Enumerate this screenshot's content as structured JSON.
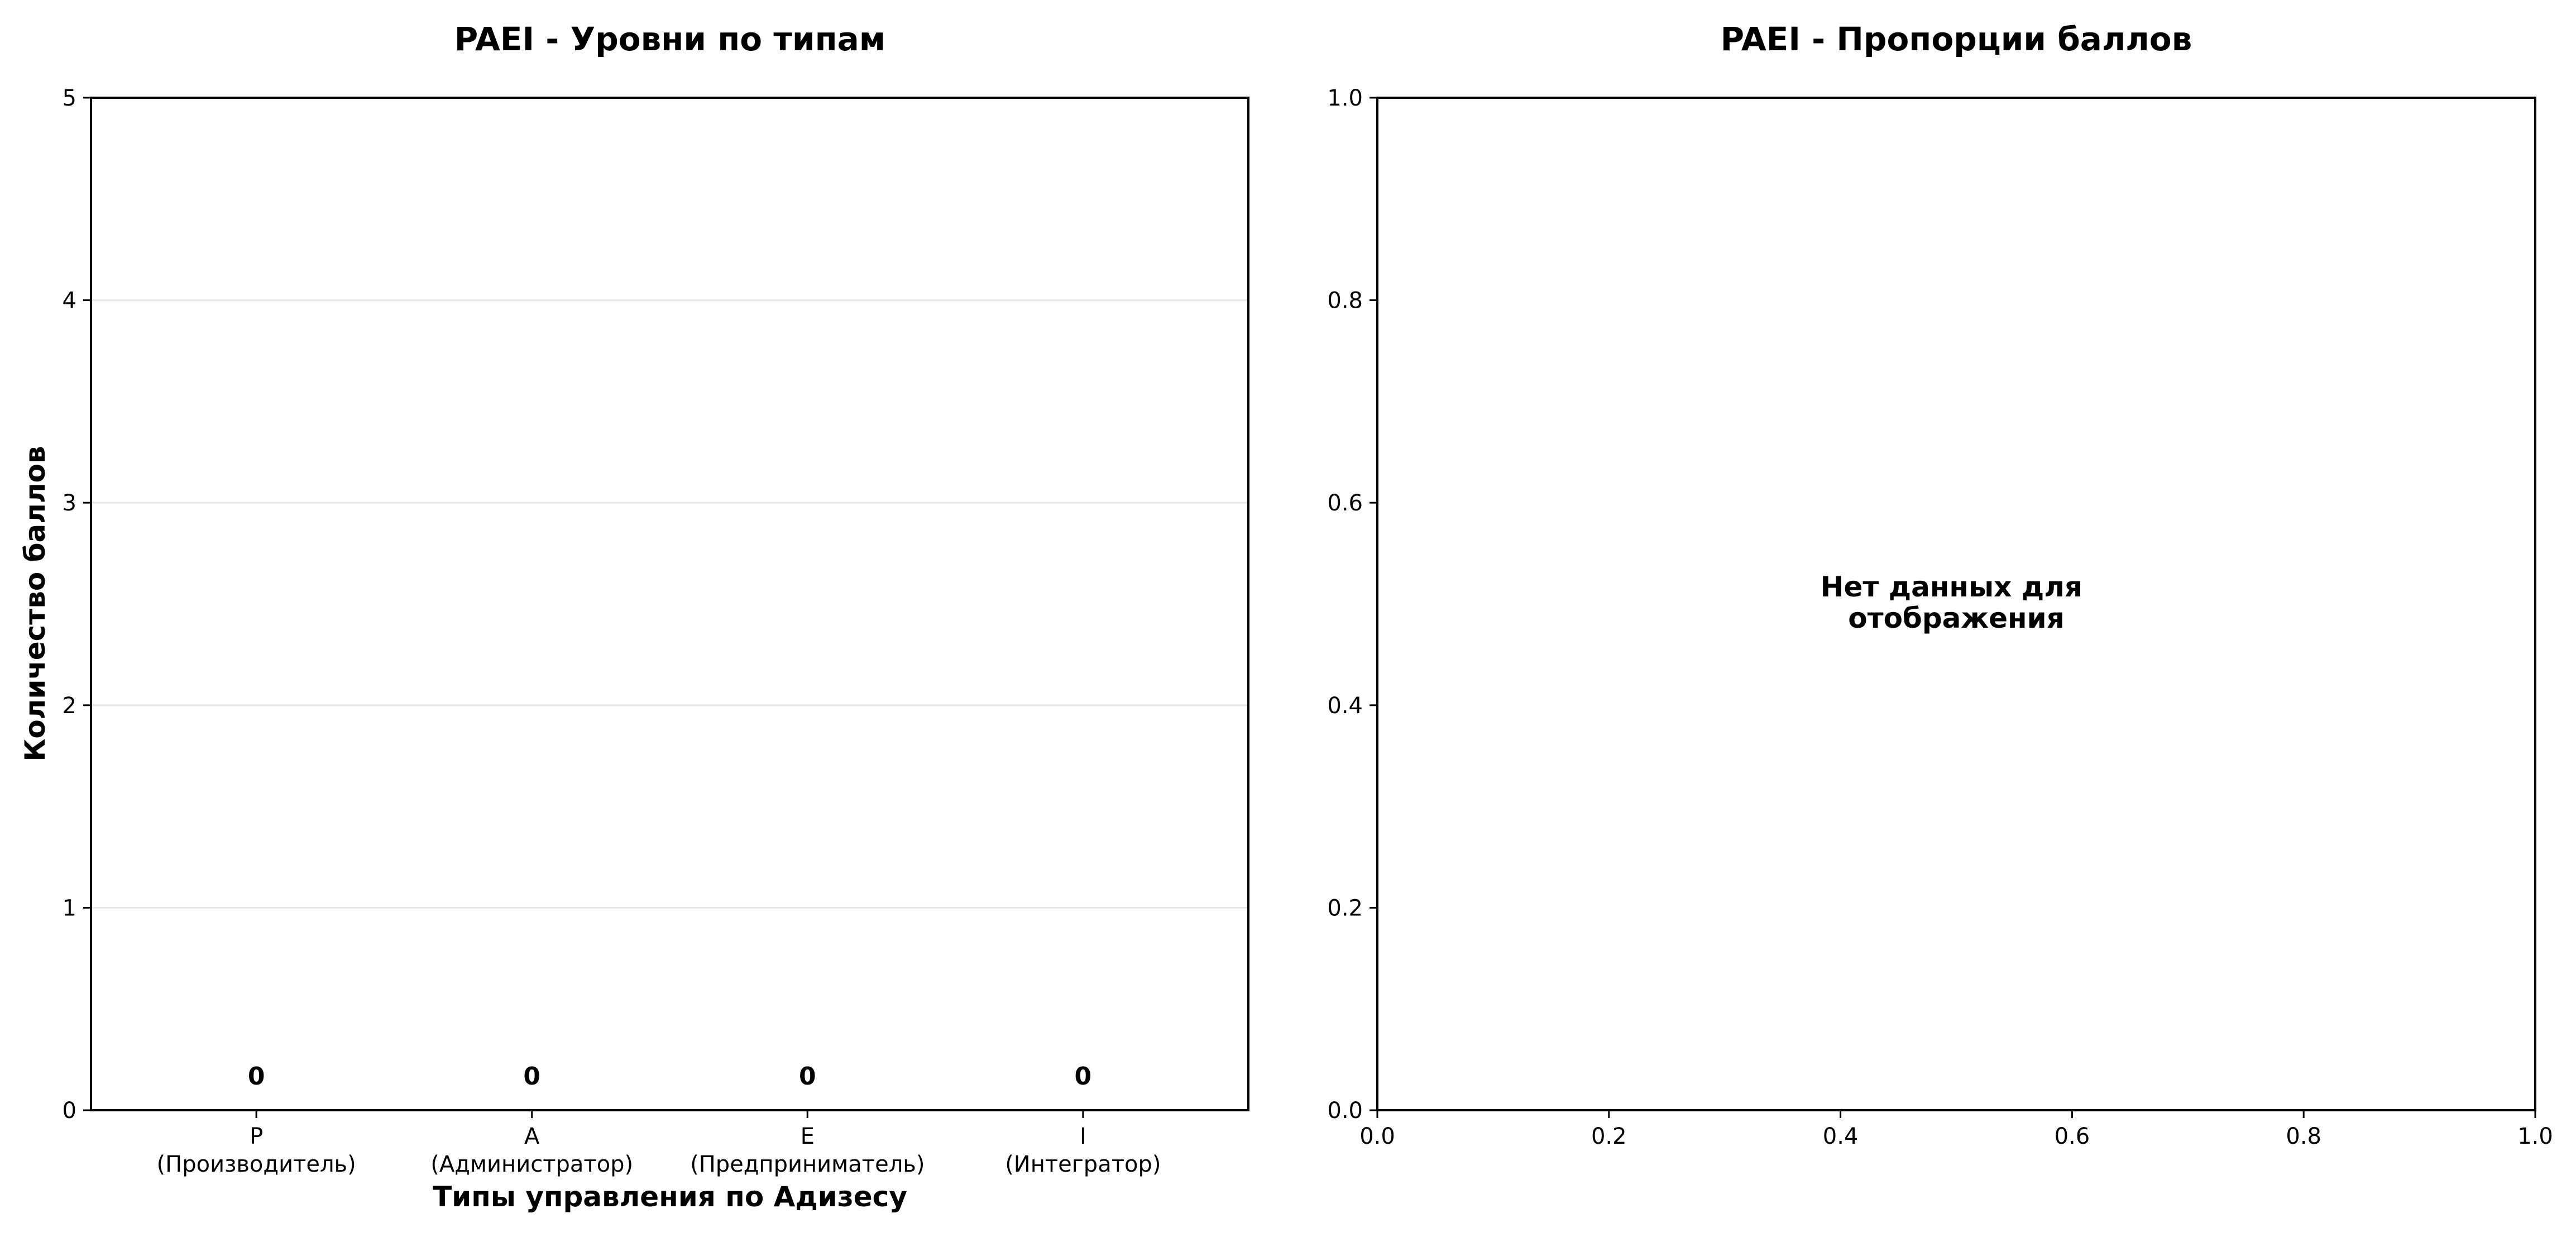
{
  "chart_data": [
    {
      "type": "bar",
      "title": "PAEI - Уровни по типам",
      "xlabel": "Типы управления по Адизесу",
      "ylabel": "Количество баллов",
      "categories": [
        [
          "P",
          "(Производитель)"
        ],
        [
          "A",
          "(Администратор)"
        ],
        [
          "E",
          "(Предприниматель)"
        ],
        [
          "I",
          "(Интегратор)"
        ]
      ],
      "values": [
        0,
        0,
        0,
        0
      ],
      "data_labels": [
        "0",
        "0",
        "0",
        "0"
      ],
      "ylim": [
        0,
        5
      ],
      "yticks": [
        "0",
        "1",
        "2",
        "3",
        "4",
        "5"
      ],
      "grid": "horizontal"
    },
    {
      "type": "pie",
      "title": "PAEI - Пропорции баллов",
      "message": [
        "Нет данных для",
        "отображения"
      ],
      "xlim": [
        0,
        1
      ],
      "ylim": [
        0,
        1
      ],
      "xticks": [
        "0.0",
        "0.2",
        "0.4",
        "0.6",
        "0.8",
        "1.0"
      ],
      "yticks": [
        "0.0",
        "0.2",
        "0.4",
        "0.6",
        "0.8",
        "1.0"
      ],
      "values": []
    }
  ]
}
